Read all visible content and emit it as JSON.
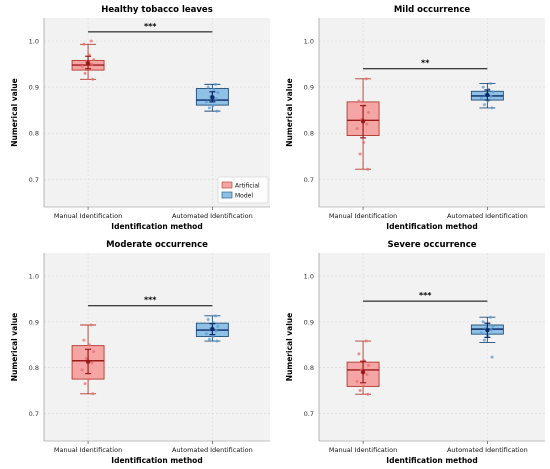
{
  "colors": {
    "artificial_fill": "#f6a5a5",
    "artificial_edge": "#b03a2e",
    "artificial_median": "#9b1b1b",
    "artificial_point": "#e76f6f",
    "model_fill": "#8fc1e6",
    "model_edge": "#1f4e79",
    "model_median": "#0b2a66",
    "model_point": "#5a9bd5",
    "panel_bg": "#f2f2f2",
    "grid": "#dddddd"
  },
  "legend": {
    "entries": [
      {
        "label": "Artificial",
        "series": "artificial"
      },
      {
        "label": "Model",
        "series": "model"
      }
    ]
  },
  "chart_data": [
    {
      "type": "box",
      "title": "Healthy tobacco leaves",
      "xlabel": "Identification method",
      "ylabel": "Numerical value",
      "categories": [
        "Manual Identification",
        "Automated Identification"
      ],
      "yticks": [
        "0.7",
        "0.8",
        "0.9",
        "1.0"
      ],
      "ylim": [
        0.64,
        1.05
      ],
      "grid": true,
      "legend": "lower-right",
      "significance": "***",
      "bracket_y": 1.02,
      "boxes": [
        {
          "series": "artificial",
          "whisker_low": 0.917,
          "q1": 0.937,
          "median": 0.948,
          "q3": 0.958,
          "whisker_high": 0.993,
          "mean": 0.952,
          "ci": [
            0.94,
            0.967
          ],
          "points": [
            1.0,
            0.993,
            0.97,
            0.96,
            0.955,
            0.95,
            0.945,
            0.94,
            0.93,
            0.917
          ]
        },
        {
          "series": "model",
          "whisker_low": 0.848,
          "q1": 0.861,
          "median": 0.872,
          "q3": 0.897,
          "whisker_high": 0.906,
          "mean": 0.878,
          "ci": [
            0.868,
            0.89
          ],
          "points": [
            0.906,
            0.9,
            0.895,
            0.888,
            0.88,
            0.875,
            0.868,
            0.86,
            0.855,
            0.848
          ]
        }
      ]
    },
    {
      "type": "box",
      "title": "Mild occurrence",
      "xlabel": "Identification method",
      "ylabel": "Numerical value",
      "categories": [
        "Manual Identification",
        "Automated Identification"
      ],
      "yticks": [
        "0.7",
        "0.8",
        "0.9",
        "1.0"
      ],
      "ylim": [
        0.64,
        1.05
      ],
      "grid": true,
      "significance": "**",
      "bracket_y": 0.94,
      "boxes": [
        {
          "series": "artificial",
          "whisker_low": 0.722,
          "q1": 0.795,
          "median": 0.828,
          "q3": 0.868,
          "whisker_high": 0.918,
          "mean": 0.826,
          "ci": [
            0.79,
            0.86
          ],
          "points": [
            0.918,
            0.87,
            0.86,
            0.845,
            0.83,
            0.82,
            0.81,
            0.78,
            0.755,
            0.722
          ]
        },
        {
          "series": "model",
          "whisker_low": 0.855,
          "q1": 0.872,
          "median": 0.881,
          "q3": 0.891,
          "whisker_high": 0.908,
          "mean": 0.883,
          "ci": [
            0.872,
            0.894
          ],
          "points": [
            0.908,
            0.9,
            0.895,
            0.89,
            0.884,
            0.88,
            0.876,
            0.87,
            0.862,
            0.855
          ]
        }
      ]
    },
    {
      "type": "box",
      "title": "Moderate occurrence",
      "xlabel": "Identification method",
      "ylabel": "Numerical value",
      "categories": [
        "Manual Identification",
        "Automated Identification"
      ],
      "yticks": [
        "0.7",
        "0.8",
        "0.9",
        "1.0"
      ],
      "ylim": [
        0.64,
        1.05
      ],
      "grid": true,
      "significance": "***",
      "bracket_y": 0.935,
      "boxes": [
        {
          "series": "artificial",
          "whisker_low": 0.743,
          "q1": 0.775,
          "median": 0.815,
          "q3": 0.848,
          "whisker_high": 0.893,
          "mean": 0.813,
          "ci": [
            0.787,
            0.84
          ],
          "points": [
            0.893,
            0.86,
            0.85,
            0.835,
            0.82,
            0.81,
            0.795,
            0.775,
            0.765,
            0.743
          ]
        },
        {
          "series": "model",
          "whisker_low": 0.858,
          "q1": 0.868,
          "median": 0.882,
          "q3": 0.897,
          "whisker_high": 0.913,
          "mean": 0.884,
          "ci": [
            0.872,
            0.896
          ],
          "points": [
            0.913,
            0.905,
            0.898,
            0.89,
            0.885,
            0.88,
            0.874,
            0.868,
            0.862,
            0.858
          ]
        }
      ]
    },
    {
      "type": "box",
      "title": "Severe occurrence",
      "xlabel": "Identification method",
      "ylabel": "Numerical value",
      "categories": [
        "Manual Identification",
        "Automated Identification"
      ],
      "yticks": [
        "0.7",
        "0.8",
        "0.9",
        "1.0"
      ],
      "ylim": [
        0.64,
        1.05
      ],
      "grid": true,
      "significance": "***",
      "bracket_y": 0.945,
      "boxes": [
        {
          "series": "artificial",
          "whisker_low": 0.742,
          "q1": 0.759,
          "median": 0.795,
          "q3": 0.812,
          "whisker_high": 0.858,
          "mean": 0.79,
          "ci": [
            0.767,
            0.814
          ],
          "points": [
            0.858,
            0.83,
            0.815,
            0.805,
            0.795,
            0.785,
            0.77,
            0.76,
            0.75,
            0.742
          ]
        },
        {
          "series": "model",
          "whisker_low": 0.855,
          "q1": 0.873,
          "median": 0.884,
          "q3": 0.893,
          "whisker_high": 0.91,
          "mean": 0.882,
          "ci": [
            0.866,
            0.897
          ],
          "points": [
            0.91,
            0.9,
            0.895,
            0.89,
            0.886,
            0.882,
            0.876,
            0.87,
            0.86,
            0.823
          ]
        }
      ]
    }
  ]
}
